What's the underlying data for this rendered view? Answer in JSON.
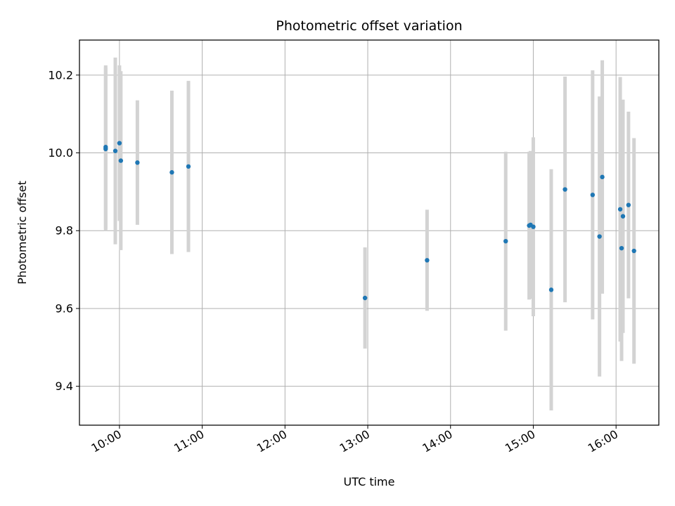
{
  "chart_data": {
    "type": "scatter",
    "title": "Photometric offset variation",
    "xlabel": "UTC time",
    "ylabel": "Photometric offset",
    "x_ticks": [
      "10:00",
      "11:00",
      "12:00",
      "13:00",
      "14:00",
      "15:00",
      "16:00"
    ],
    "y_ticks": [
      "9.4",
      "9.6",
      "9.8",
      "10.0",
      "10.2"
    ],
    "xlim": [
      "09:31",
      "16:31"
    ],
    "ylim": [
      9.3,
      10.29
    ],
    "grid": true,
    "colors": {
      "points": "#1f77b4",
      "error_bars": "#d3d3d3",
      "grid": "#b0b0b0"
    },
    "series": [
      {
        "points": [
          {
            "x": "09:50",
            "y": 10.015,
            "err": 0.21
          },
          {
            "x": "09:50",
            "y": 10.01,
            "err": 0.21
          },
          {
            "x": "09:57",
            "y": 10.005,
            "err": 0.24
          },
          {
            "x": "10:00",
            "y": 10.025,
            "err": 0.2
          },
          {
            "x": "10:01",
            "y": 9.98,
            "err": 0.23
          },
          {
            "x": "10:13",
            "y": 9.975,
            "err": 0.16
          },
          {
            "x": "10:38",
            "y": 9.95,
            "err": 0.21
          },
          {
            "x": "10:50",
            "y": 9.965,
            "err": 0.22
          },
          {
            "x": "12:58",
            "y": 9.627,
            "err": 0.13
          },
          {
            "x": "13:43",
            "y": 9.724,
            "err": 0.13
          },
          {
            "x": "14:40",
            "y": 9.773,
            "err": 0.23
          },
          {
            "x": "14:57",
            "y": 9.813,
            "err": 0.19
          },
          {
            "x": "14:58",
            "y": 9.815,
            "err": 0.19
          },
          {
            "x": "15:00",
            "y": 9.81,
            "err": 0.23
          },
          {
            "x": "15:13",
            "y": 9.648,
            "err": 0.31
          },
          {
            "x": "15:23",
            "y": 9.906,
            "err": 0.29
          },
          {
            "x": "15:43",
            "y": 9.892,
            "err": 0.32
          },
          {
            "x": "15:48",
            "y": 9.785,
            "err": 0.36
          },
          {
            "x": "15:50",
            "y": 9.938,
            "err": 0.3
          },
          {
            "x": "16:03",
            "y": 9.855,
            "err": 0.34
          },
          {
            "x": "16:04",
            "y": 9.755,
            "err": 0.29
          },
          {
            "x": "16:05",
            "y": 9.837,
            "err": 0.3
          },
          {
            "x": "16:09",
            "y": 9.866,
            "err": 0.24
          },
          {
            "x": "16:13",
            "y": 9.748,
            "err": 0.29
          }
        ]
      }
    ]
  }
}
